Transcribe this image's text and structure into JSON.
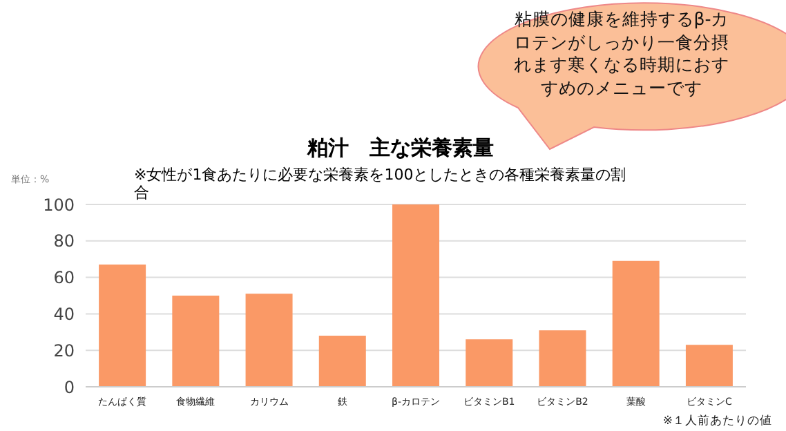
{
  "chart_data": {
    "type": "bar",
    "title": "粕汁　主な栄養素量",
    "subtitle": "※女性が1食あたりに必要な栄養素を100としたときの各種栄養素量の割合",
    "ylabel": "単位：%",
    "categories": [
      "たんぱく質",
      "食物繊維",
      "カリウム",
      "鉄",
      "β-カロテン",
      "ビタミンB1",
      "ビタミンB2",
      "葉酸",
      "ビタミンC"
    ],
    "values": [
      67,
      50,
      51,
      28,
      100,
      26,
      31,
      69,
      23
    ],
    "color": "#fa9966",
    "ylim": [
      0,
      100
    ],
    "yticks": [
      0,
      20,
      40,
      60,
      80,
      100
    ],
    "grid": "y",
    "legend": false,
    "annotations": [
      "粘膜の健康を維持するβ-カロテンがしっかり一食分摂れます寒くなる時期におすすめのメニューです",
      "※１人前あたりの値"
    ]
  }
}
